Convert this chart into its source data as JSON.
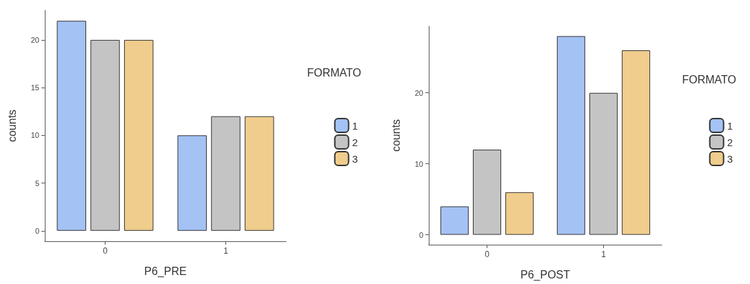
{
  "chart_data": [
    {
      "type": "bar",
      "xlabel": "P6_PRE",
      "ylabel": "counts",
      "legend_title": "FORMATO",
      "categories": [
        "0",
        "1"
      ],
      "series": [
        {
          "name": "1",
          "color": "#a4c2f4",
          "values": [
            22,
            10
          ]
        },
        {
          "name": "2",
          "color": "#c4c4c4",
          "values": [
            20,
            12
          ]
        },
        {
          "name": "3",
          "color": "#f0cd8c",
          "values": [
            20,
            12
          ]
        }
      ],
      "ylim": [
        -1.1,
        23.1
      ],
      "yticks": [
        0,
        5,
        10,
        15,
        20
      ],
      "grid": false,
      "legend": "right"
    },
    {
      "type": "bar",
      "xlabel": "P6_POST",
      "ylabel": "counts",
      "legend_title": "FORMATO",
      "categories": [
        "0",
        "1"
      ],
      "series": [
        {
          "name": "1",
          "color": "#a4c2f4",
          "values": [
            4,
            28
          ]
        },
        {
          "name": "2",
          "color": "#c4c4c4",
          "values": [
            12,
            20
          ]
        },
        {
          "name": "3",
          "color": "#f0cd8c",
          "values": [
            6,
            26
          ]
        }
      ],
      "ylim": [
        -1.4,
        29.4
      ],
      "yticks": [
        0,
        10,
        20
      ],
      "grid": false,
      "legend": "right"
    }
  ]
}
